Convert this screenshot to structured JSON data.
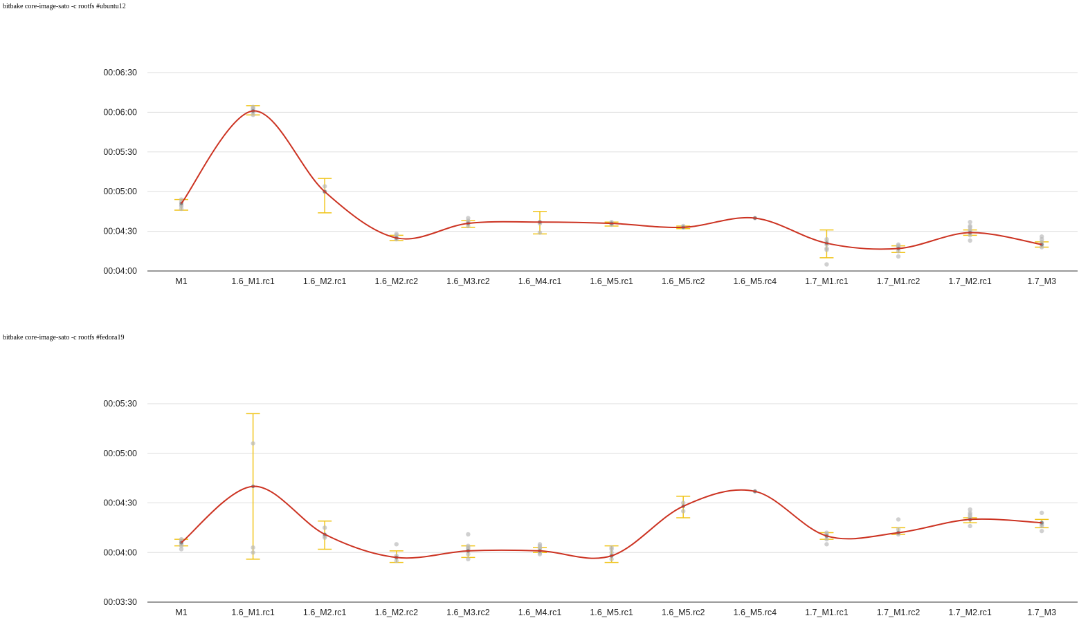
{
  "charts": [
    {
      "title": "bitbake core-image-sato -c rootfs #ubuntu12",
      "yticks": [
        "00:04:00",
        "00:04:30",
        "00:05:00",
        "00:05:30",
        "00:06:00",
        "00:06:30"
      ]
    },
    {
      "title": "bitbake core-image-sato -c rootfs #fedora19",
      "yticks": [
        "00:03:30",
        "00:04:00",
        "00:04:30",
        "00:05:00",
        "00:05:30"
      ]
    }
  ],
  "chart_data": [
    {
      "type": "line",
      "title": "bitbake core-image-sato -c rootfs #ubuntu12",
      "categories": [
        "M1",
        "1.6_M1.rc1",
        "1.6_M2.rc1",
        "1.6_M2.rc2",
        "1.6_M3.rc2",
        "1.6_M4.rc1",
        "1.6_M5.rc1",
        "1.6_M5.rc2",
        "1.6_M5.rc4",
        "1.7_M1.rc1",
        "1.7_M1.rc2",
        "1.7_M2.rc1",
        "1.7_M3"
      ],
      "ylim": [
        240,
        405
      ],
      "ytick_values": [
        240,
        270,
        300,
        330,
        360,
        390
      ],
      "grid": true,
      "series": [
        {
          "mean": [
            291,
            361,
            300,
            265,
            276,
            277,
            276,
            273,
            280,
            261,
            257,
            269,
            260
          ],
          "error_low": [
            286,
            358,
            284,
            263,
            273,
            268,
            274,
            272,
            280,
            250,
            254,
            267,
            258
          ],
          "error_high": [
            294,
            365,
            310,
            267,
            278,
            285,
            277,
            274,
            280,
            271,
            259,
            271,
            262
          ],
          "samples": [
            [
              292,
              294,
              289,
              287,
              290
            ],
            [
              364,
              363,
              358,
              360,
              362
            ],
            [
              300,
              304
            ],
            [
              267,
              265,
              264,
              268
            ],
            [
              278,
              276,
              274,
              280,
              277
            ],
            [
              276,
              269,
              277
            ],
            [
              276,
              277,
              275
            ],
            [
              273,
              274
            ],
            [
              280
            ],
            [
              264,
              262,
              257,
              256,
              260,
              245
            ],
            [
              259,
              257,
              255,
              251,
              258,
              260
            ],
            [
              269,
              271,
              273,
              267,
              274,
              277,
              263,
              270
            ],
            [
              260,
              262,
              264,
              258,
              266
            ]
          ]
        }
      ]
    },
    {
      "type": "line",
      "title": "bitbake core-image-sato -c rootfs #fedora19",
      "categories": [
        "M1",
        "1.6_M1.rc1",
        "1.6_M2.rc1",
        "1.6_M2.rc2",
        "1.6_M3.rc2",
        "1.6_M4.rc1",
        "1.6_M5.rc1",
        "1.6_M5.rc2",
        "1.6_M5.rc4",
        "1.7_M1.rc1",
        "1.7_M1.rc2",
        "1.7_M2.rc1",
        "1.7_M3"
      ],
      "ylim": [
        210,
        345
      ],
      "ytick_values": [
        210,
        240,
        270,
        300,
        330
      ],
      "grid": true,
      "series": [
        {
          "mean": [
            246,
            280,
            251,
            237,
            241,
            241,
            238,
            268,
            277,
            250,
            252,
            260,
            258
          ],
          "error_low": [
            244,
            236,
            242,
            234,
            237,
            240,
            234,
            261,
            277,
            248,
            251,
            258,
            255
          ],
          "error_high": [
            248,
            324,
            259,
            241,
            244,
            243,
            244,
            274,
            277,
            252,
            255,
            261,
            260
          ],
          "samples": [
            [
              245,
              247,
              244,
              242,
              248,
              246
            ],
            [
              306,
              240,
              243
            ],
            [
              255,
              250,
              249
            ],
            [
              238,
              237,
              235,
              245
            ],
            [
              241,
              244,
              242,
              239,
              236,
              251,
              243
            ],
            [
              240,
              242,
              245,
              239,
              243,
              244
            ],
            [
              238,
              240,
              243,
              236,
              242
            ],
            [
              270,
              265
            ],
            [
              277
            ],
            [
              250,
              252,
              248,
              245,
              251
            ],
            [
              252,
              251,
              254,
              260
            ],
            [
              260,
              262,
              264,
              261,
              256,
              266,
              263
            ],
            [
              258,
              257,
              256,
              264,
              253
            ]
          ]
        }
      ]
    }
  ],
  "colors": {
    "line": "#cc3322",
    "error_bar": "#f0c419",
    "sample_point": "#b7b7b7",
    "grid": "#dddddd",
    "axis": "#333333"
  }
}
